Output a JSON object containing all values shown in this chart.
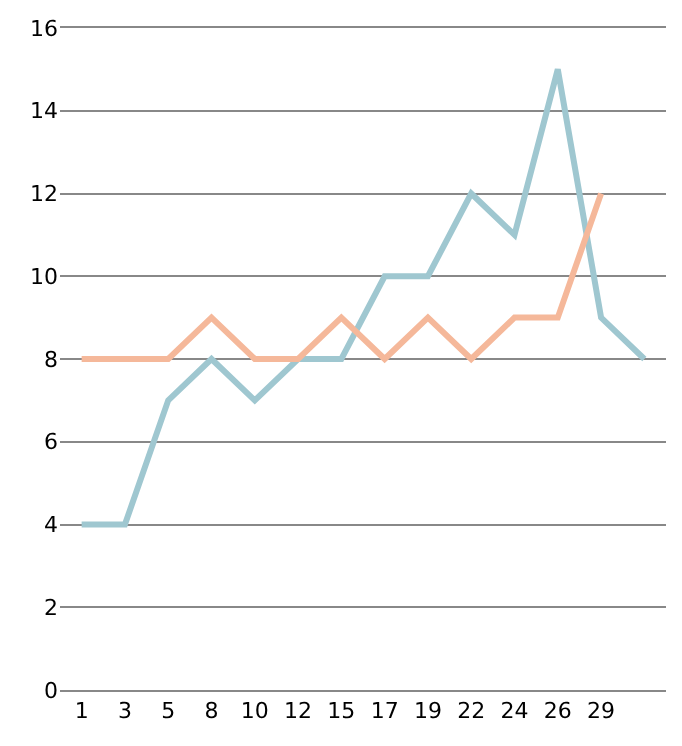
{
  "chart_data": {
    "type": "line",
    "categories": [
      "1",
      "3",
      "5",
      "8",
      "10",
      "12",
      "15",
      "17",
      "19",
      "22",
      "24",
      "26",
      "29",
      null
    ],
    "series": [
      {
        "color": "#9fc7d0",
        "values": [
          4,
          4,
          7,
          8,
          7,
          8,
          8,
          10,
          10,
          12,
          11,
          15,
          9,
          8
        ]
      },
      {
        "color": "#f5b89a",
        "values": [
          8,
          8,
          8,
          9,
          8,
          8,
          9,
          8,
          9,
          8,
          9,
          9,
          12,
          null
        ]
      }
    ],
    "ylim": [
      0,
      16
    ],
    "yticks": [
      0,
      2,
      4,
      6,
      8,
      10,
      12,
      14,
      16
    ],
    "grid": "y",
    "marker": "none",
    "line_style": "solid"
  }
}
